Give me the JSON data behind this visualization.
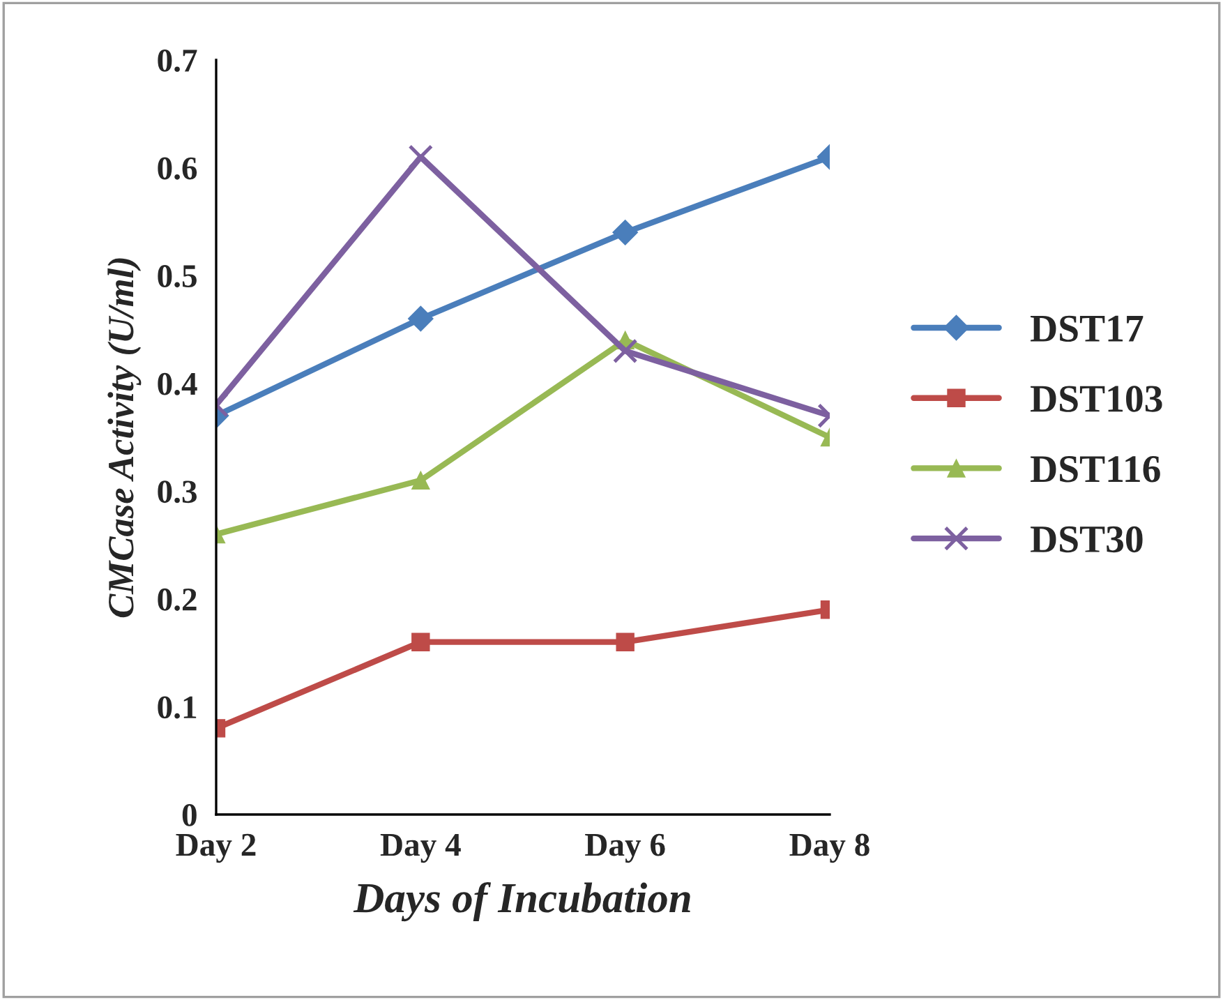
{
  "chart_data": {
    "type": "line",
    "xlabel": "Days of Incubation",
    "ylabel": "CMCase Activity (U/ml)",
    "categories": [
      "Day 2",
      "Day 4",
      "Day 6",
      "Day 8"
    ],
    "series": [
      {
        "name": "DST17",
        "color": "#4a7ebb",
        "marker": "diamond",
        "values": [
          0.37,
          0.46,
          0.54,
          0.61
        ]
      },
      {
        "name": "DST103",
        "color": "#be4b48",
        "marker": "square",
        "values": [
          0.08,
          0.16,
          0.16,
          0.19
        ]
      },
      {
        "name": "DST116",
        "color": "#98b954",
        "marker": "triangle",
        "values": [
          0.26,
          0.31,
          0.44,
          0.35
        ]
      },
      {
        "name": "DST30",
        "color": "#7d60a0",
        "marker": "cross",
        "values": [
          0.38,
          0.61,
          0.43,
          0.37
        ]
      }
    ],
    "ylim": [
      0,
      0.7
    ],
    "yticks": [
      0,
      0.1,
      0.2,
      0.3,
      0.4,
      0.5,
      0.6,
      0.7
    ],
    "grid": false,
    "legend": "right",
    "line_style": "solid"
  }
}
